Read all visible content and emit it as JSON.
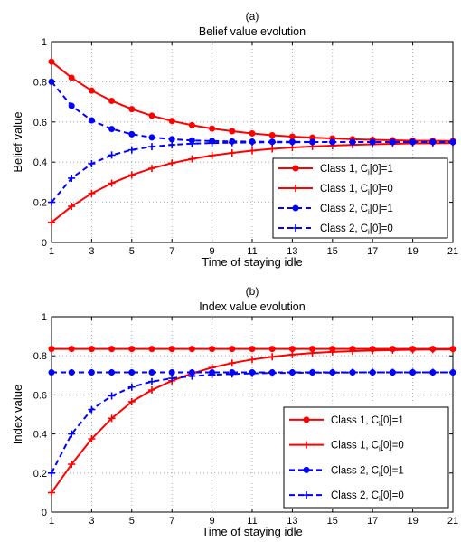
{
  "chart_data": [
    {
      "type": "line",
      "panel_label": "(a)",
      "title": "Belief value evolution",
      "xlabel": "Time of staying idle",
      "ylabel": "Belief value",
      "xlim": [
        1,
        21
      ],
      "ylim": [
        0,
        1
      ],
      "x_ticks": [
        "1",
        "3",
        "5",
        "7",
        "9",
        "11",
        "13",
        "15",
        "17",
        "19",
        "21"
      ],
      "y_ticks": [
        "0",
        "0.2",
        "0.4",
        "0.6",
        "0.8",
        "1"
      ],
      "grid": true,
      "legend_position": "lower-right",
      "x": [
        1,
        2,
        3,
        4,
        5,
        6,
        7,
        8,
        9,
        10,
        11,
        12,
        13,
        14,
        15,
        16,
        17,
        18,
        19,
        20,
        21
      ],
      "series": [
        {
          "name": "Class 1, C",
          "sub": "i",
          "suffix": "[0]=1",
          "color": "#ff0000",
          "dash": "solid",
          "marker": "dot",
          "values": [
            0.9,
            0.82,
            0.756,
            0.705,
            0.664,
            0.631,
            0.605,
            0.584,
            0.567,
            0.554,
            0.543,
            0.534,
            0.527,
            0.522,
            0.518,
            0.514,
            0.511,
            0.509,
            0.507,
            0.506,
            0.505
          ]
        },
        {
          "name": "Class 1, C",
          "sub": "i",
          "suffix": "[0]=0",
          "color": "#ff0000",
          "dash": "solid",
          "marker": "plus",
          "values": [
            0.1,
            0.18,
            0.244,
            0.295,
            0.336,
            0.369,
            0.395,
            0.416,
            0.433,
            0.446,
            0.457,
            0.466,
            0.473,
            0.478,
            0.482,
            0.486,
            0.489,
            0.491,
            0.493,
            0.494,
            0.495
          ]
        },
        {
          "name": "Class 2, C",
          "sub": "i",
          "suffix": "[0]=1",
          "color": "#0000ff",
          "dash": "dashed",
          "marker": "dot",
          "values": [
            0.8,
            0.68,
            0.608,
            0.565,
            0.539,
            0.523,
            0.514,
            0.508,
            0.505,
            0.503,
            0.502,
            0.501,
            0.501,
            0.5,
            0.5,
            0.5,
            0.5,
            0.5,
            0.5,
            0.5,
            0.5
          ]
        },
        {
          "name": "Class 2, C",
          "sub": "i",
          "suffix": "[0]=0",
          "color": "#0000ff",
          "dash": "dashed",
          "marker": "plus",
          "values": [
            0.2,
            0.32,
            0.392,
            0.435,
            0.461,
            0.477,
            0.486,
            0.492,
            0.495,
            0.497,
            0.498,
            0.499,
            0.499,
            0.5,
            0.5,
            0.5,
            0.5,
            0.5,
            0.5,
            0.5,
            0.5
          ]
        }
      ]
    },
    {
      "type": "line",
      "panel_label": "(b)",
      "title": "Index value evolution",
      "xlabel": "Time of staying idle",
      "ylabel": "Index value",
      "xlim": [
        1,
        21
      ],
      "ylim": [
        0,
        1
      ],
      "x_ticks": [
        "1",
        "3",
        "5",
        "7",
        "9",
        "11",
        "13",
        "15",
        "17",
        "19",
        "21"
      ],
      "y_ticks": [
        "0",
        "0.2",
        "0.4",
        "0.6",
        "0.8",
        "1"
      ],
      "grid": true,
      "legend_position": "lower-right",
      "x": [
        1,
        2,
        3,
        4,
        5,
        6,
        7,
        8,
        9,
        10,
        11,
        12,
        13,
        14,
        15,
        16,
        17,
        18,
        19,
        20,
        21
      ],
      "series": [
        {
          "name": "Class 1, C",
          "sub": "i",
          "suffix": "[0]=1",
          "color": "#ff0000",
          "dash": "solid",
          "marker": "dot",
          "values": [
            0.835,
            0.835,
            0.835,
            0.835,
            0.835,
            0.835,
            0.835,
            0.835,
            0.835,
            0.835,
            0.835,
            0.835,
            0.835,
            0.835,
            0.835,
            0.835,
            0.835,
            0.835,
            0.835,
            0.835,
            0.835
          ]
        },
        {
          "name": "Class 1, C",
          "sub": "i",
          "suffix": "[0]=0",
          "color": "#ff0000",
          "dash": "solid",
          "marker": "plus",
          "values": [
            0.1,
            0.245,
            0.375,
            0.48,
            0.565,
            0.625,
            0.672,
            0.71,
            0.74,
            0.763,
            0.781,
            0.795,
            0.806,
            0.814,
            0.82,
            0.824,
            0.827,
            0.829,
            0.831,
            0.832,
            0.833
          ]
        },
        {
          "name": "Class 2, C",
          "sub": "i",
          "suffix": "[0]=1",
          "color": "#0000ff",
          "dash": "dashed",
          "marker": "dot",
          "values": [
            0.715,
            0.715,
            0.715,
            0.715,
            0.715,
            0.715,
            0.715,
            0.715,
            0.715,
            0.715,
            0.715,
            0.715,
            0.715,
            0.715,
            0.715,
            0.715,
            0.715,
            0.715,
            0.715,
            0.715,
            0.715
          ]
        },
        {
          "name": "Class 2, C",
          "sub": "i",
          "suffix": "[0]=0",
          "color": "#0000ff",
          "dash": "dashed",
          "marker": "plus",
          "values": [
            0.2,
            0.4,
            0.525,
            0.595,
            0.64,
            0.668,
            0.685,
            0.696,
            0.703,
            0.707,
            0.71,
            0.712,
            0.713,
            0.714,
            0.714,
            0.715,
            0.715,
            0.715,
            0.715,
            0.715,
            0.715
          ]
        }
      ]
    }
  ]
}
